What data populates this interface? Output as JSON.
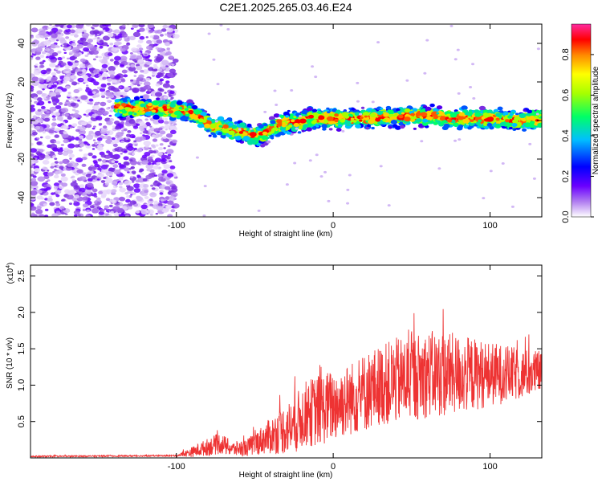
{
  "title": "C2E1.2025.265.03.46.E24",
  "chart_data": [
    {
      "type": "heatmap",
      "xlabel": "Height of straight line (km)",
      "ylabel": "Frequency (Hz)",
      "xlim": [
        -193,
        133
      ],
      "ylim": [
        -50,
        50
      ],
      "xticks": [
        -100,
        0,
        100
      ],
      "xtick_labels": [
        "-100",
        "0",
        "100"
      ],
      "yticks": [
        -40,
        -20,
        0,
        20,
        40
      ],
      "ytick_labels": [
        "-40",
        "-20",
        "0",
        "20",
        "40"
      ],
      "noise_region_x": [
        -193,
        -100
      ],
      "ridge_start_x": -138,
      "ridge": {
        "x": [
          -138,
          -120,
          -105,
          -95,
          -85,
          -78,
          -70,
          -60,
          -50,
          -42,
          -35,
          -28,
          -22,
          -15,
          0,
          20,
          40,
          60,
          80,
          100,
          120,
          133
        ],
        "y": [
          7,
          6,
          6,
          5,
          2,
          -3,
          -4,
          -6,
          -8,
          -6,
          -2,
          -1,
          -1,
          1,
          1,
          1,
          2,
          2,
          1,
          1,
          0,
          1
        ]
      },
      "colorbar": {
        "label": "Normalized spectral amplitude",
        "range": [
          0.0,
          0.95
        ],
        "ticks": [
          0.0,
          0.2,
          0.4,
          0.6,
          0.8
        ],
        "tick_labels": [
          "0.0",
          "0.2",
          "0.4",
          "0.6",
          "0.8"
        ]
      }
    },
    {
      "type": "line",
      "xlabel": "Height of straight line (km)",
      "ylabel": "SNR (10 * v/v)",
      "y_multiplier": "(x10",
      "y_multiplier_exp": "4",
      "y_multiplier_close": ")",
      "xlim": [
        -193,
        133
      ],
      "ylim": [
        0,
        2.65
      ],
      "xticks": [
        -100,
        0,
        100
      ],
      "xtick_labels": [
        "-100",
        "0",
        "100"
      ],
      "yticks": [
        0.5,
        1.0,
        1.5,
        2.0,
        2.5
      ],
      "ytick_labels": [
        "0.5",
        "1.0",
        "1.5",
        "2.0",
        "2.5"
      ],
      "series": [
        {
          "name": "SNR",
          "color": "#ee3333",
          "envelope_x": [
            -193,
            -100,
            -90,
            -80,
            -72,
            -64,
            -55,
            -45,
            -35,
            -25,
            -18,
            -10,
            0,
            10,
            20,
            30,
            40,
            50,
            60,
            70,
            80,
            90,
            100,
            110,
            120,
            133
          ],
          "envelope_mean": [
            0.02,
            0.03,
            0.08,
            0.15,
            0.2,
            0.12,
            0.14,
            0.25,
            0.35,
            0.45,
            0.6,
            0.65,
            0.72,
            0.8,
            0.9,
            1.0,
            1.05,
            1.1,
            1.15,
            1.15,
            1.15,
            1.15,
            1.15,
            1.15,
            1.15,
            1.18
          ],
          "envelope_spread": [
            0.01,
            0.01,
            0.07,
            0.12,
            0.15,
            0.1,
            0.12,
            0.2,
            0.3,
            0.4,
            0.45,
            0.5,
            0.5,
            0.5,
            0.55,
            0.55,
            0.6,
            0.6,
            0.6,
            0.6,
            0.55,
            0.5,
            0.45,
            0.4,
            0.35,
            0.3
          ]
        }
      ]
    }
  ],
  "colors": {
    "frame": "#000000",
    "signal": "#ee3333"
  }
}
